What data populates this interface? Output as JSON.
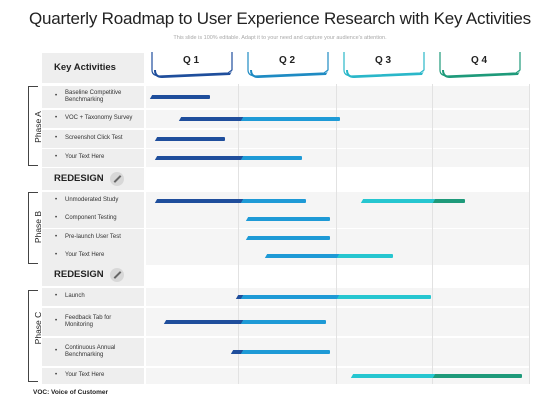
{
  "header": {
    "title": "Quarterly Roadmap to User Experience Research with Key Activities",
    "subtitle": "This slide is 100% editable. Adapt it to your need and capture your audience's attention."
  },
  "columns": {
    "key_activities": "Key Activities",
    "quarters": [
      "Q 1",
      "Q 2",
      "Q 3",
      "Q 4"
    ]
  },
  "colors": {
    "q1": "#1f4e9c",
    "q2": "#1e8bc3",
    "q3": "#2ab7c9",
    "q4": "#1e9a7a",
    "dark_bar": "#1f4e9c",
    "mid_bar": "#1e9ad6",
    "teal_bar": "#26c6d0",
    "green_bar": "#1e9a7a"
  },
  "phases": [
    {
      "label": "Phase A"
    },
    {
      "label": "Phase B"
    },
    {
      "label": "Phase C"
    }
  ],
  "sections": {
    "redesign_1": "REDESIGN",
    "redesign_2": "REDESIGN"
  },
  "rows": [
    {
      "label": "Baseline Competitive Benchmarking",
      "start_q": 0.05,
      "segments": [
        {
          "end_q": 0.65,
          "color": "dark"
        }
      ]
    },
    {
      "label": "VOC + Taxonomy Survey",
      "start_q": 0.35,
      "segments": [
        {
          "end_q": 1.0,
          "color": "dark"
        },
        {
          "end_q": 2.0,
          "color": "mid"
        }
      ]
    },
    {
      "label": "Screenshot Click Test",
      "start_q": 0.1,
      "segments": [
        {
          "end_q": 0.8,
          "color": "dark"
        }
      ]
    },
    {
      "label": "Your Text Here",
      "start_q": 0.1,
      "segments": [
        {
          "end_q": 1.0,
          "color": "dark"
        },
        {
          "end_q": 1.6,
          "color": "mid"
        }
      ]
    },
    {
      "label": "Unmoderated Study",
      "start_q": 0.1,
      "segments": [
        {
          "end_q": 1.0,
          "color": "dark"
        },
        {
          "end_q": 1.65,
          "color": "mid"
        }
      ],
      "extra": {
        "start_q": 2.25,
        "segments": [
          {
            "end_q": 3.0,
            "color": "teal"
          },
          {
            "end_q": 3.3,
            "color": "green"
          }
        ]
      }
    },
    {
      "label": "Component Testing",
      "start_q": 1.05,
      "segments": [
        {
          "end_q": 1.9,
          "color": "mid"
        }
      ]
    },
    {
      "label": "Pre-launch User Test",
      "start_q": 1.05,
      "segments": [
        {
          "end_q": 1.9,
          "color": "mid"
        }
      ]
    },
    {
      "label": "Your Text Here",
      "start_q": 1.25,
      "segments": [
        {
          "end_q": 2.0,
          "color": "mid"
        },
        {
          "end_q": 2.55,
          "color": "teal"
        }
      ]
    },
    {
      "label": "Launch",
      "start_q": 0.95,
      "segments": [
        {
          "end_q": 1.0,
          "color": "dark"
        },
        {
          "end_q": 2.0,
          "color": "mid"
        },
        {
          "end_q": 2.95,
          "color": "teal"
        }
      ]
    },
    {
      "label": "Feedback Tab for Monitoring",
      "start_q": 0.2,
      "segments": [
        {
          "end_q": 1.0,
          "color": "dark"
        },
        {
          "end_q": 1.85,
          "color": "mid"
        }
      ]
    },
    {
      "label": "Continuous Annual Benchmarking",
      "start_q": 0.9,
      "segments": [
        {
          "end_q": 1.0,
          "color": "dark"
        },
        {
          "end_q": 1.9,
          "color": "mid"
        }
      ]
    },
    {
      "label": "Your Text Here",
      "start_q": 2.15,
      "segments": [
        {
          "end_q": 3.0,
          "color": "teal"
        },
        {
          "end_q": 3.9,
          "color": "green"
        }
      ]
    }
  ],
  "footer": "VOC: Voice of Customer"
}
